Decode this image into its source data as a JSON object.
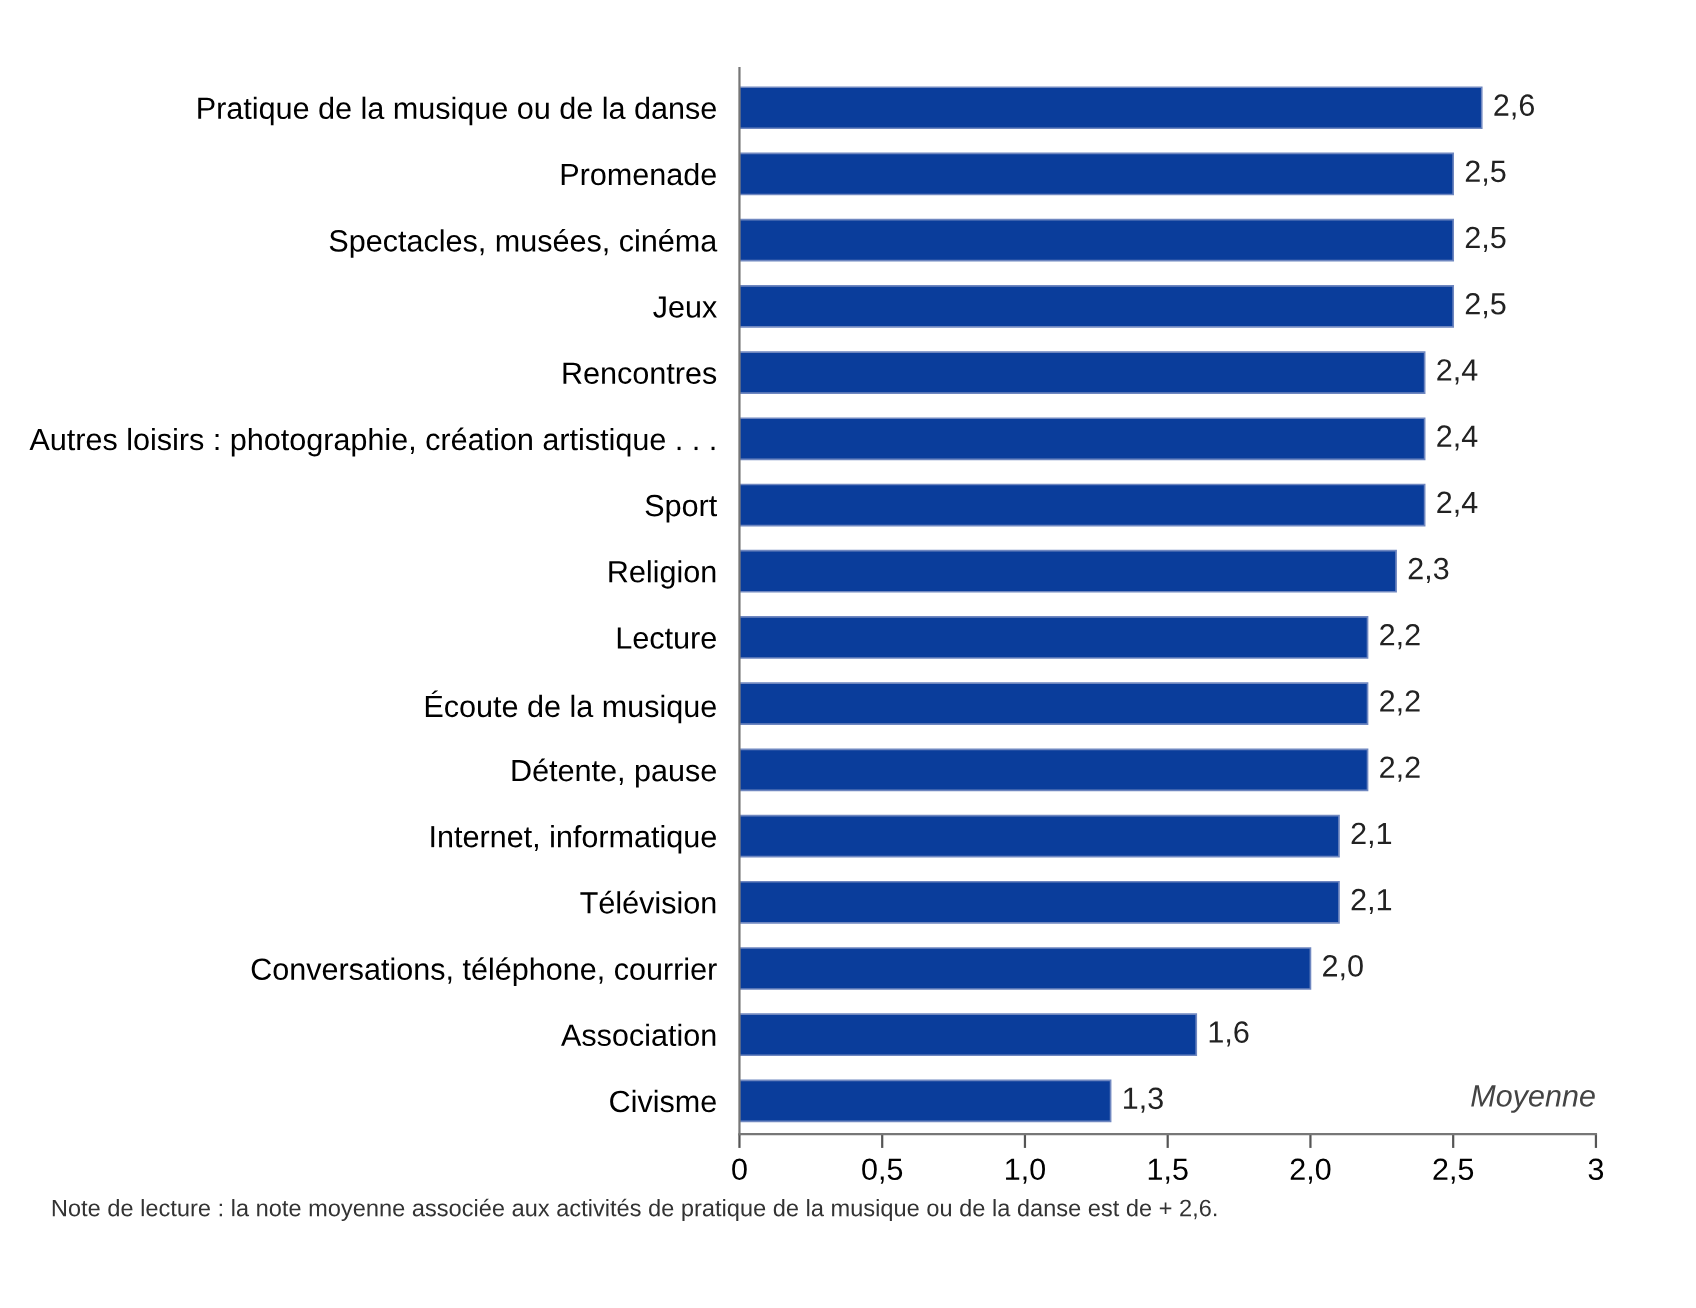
{
  "chart_data": {
    "type": "bar",
    "orientation": "horizontal",
    "xlabel": "Moyenne",
    "categories": [
      "Pratique de la musique ou de la danse",
      "Promenade",
      "Spectacles, musées, cinéma",
      "Jeux",
      "Rencontres",
      "Autres loisirs : photographie, création artistique . . .",
      "Sport",
      "Religion",
      "Lecture",
      "Écoute de la musique",
      "Détente, pause",
      "Internet, informatique",
      "Télévision",
      "Conversations, téléphone, courrier",
      "Association",
      "Civisme"
    ],
    "values": [
      2.6,
      2.5,
      2.5,
      2.5,
      2.4,
      2.4,
      2.4,
      2.3,
      2.2,
      2.2,
      2.2,
      2.1,
      2.1,
      2.0,
      1.6,
      1.3
    ],
    "value_labels": [
      "2,6",
      "2,5",
      "2,5",
      "2,5",
      "2,4",
      "2,4",
      "2,4",
      "2,3",
      "2,2",
      "2,2",
      "2,2",
      "2,1",
      "2,1",
      "2,0",
      "1,6",
      "1,3"
    ],
    "color": "#0a3d9b",
    "xlim": [
      0,
      3
    ],
    "xticks": [
      0,
      {
        "value": 0.5,
        "label": "0,5"
      },
      {
        "value": 1.0,
        "label": "1,0"
      },
      {
        "value": 1.5,
        "label": "1,5"
      },
      {
        "value": 2.0,
        "label": "2,0"
      },
      {
        "value": 2.5,
        "label": "2,5"
      },
      3
    ],
    "grid": false,
    "annotations": [
      "Note de lecture : la note moyenne associée aux activités de pratique de la musique ou de la danse est de + 2,6."
    ]
  }
}
